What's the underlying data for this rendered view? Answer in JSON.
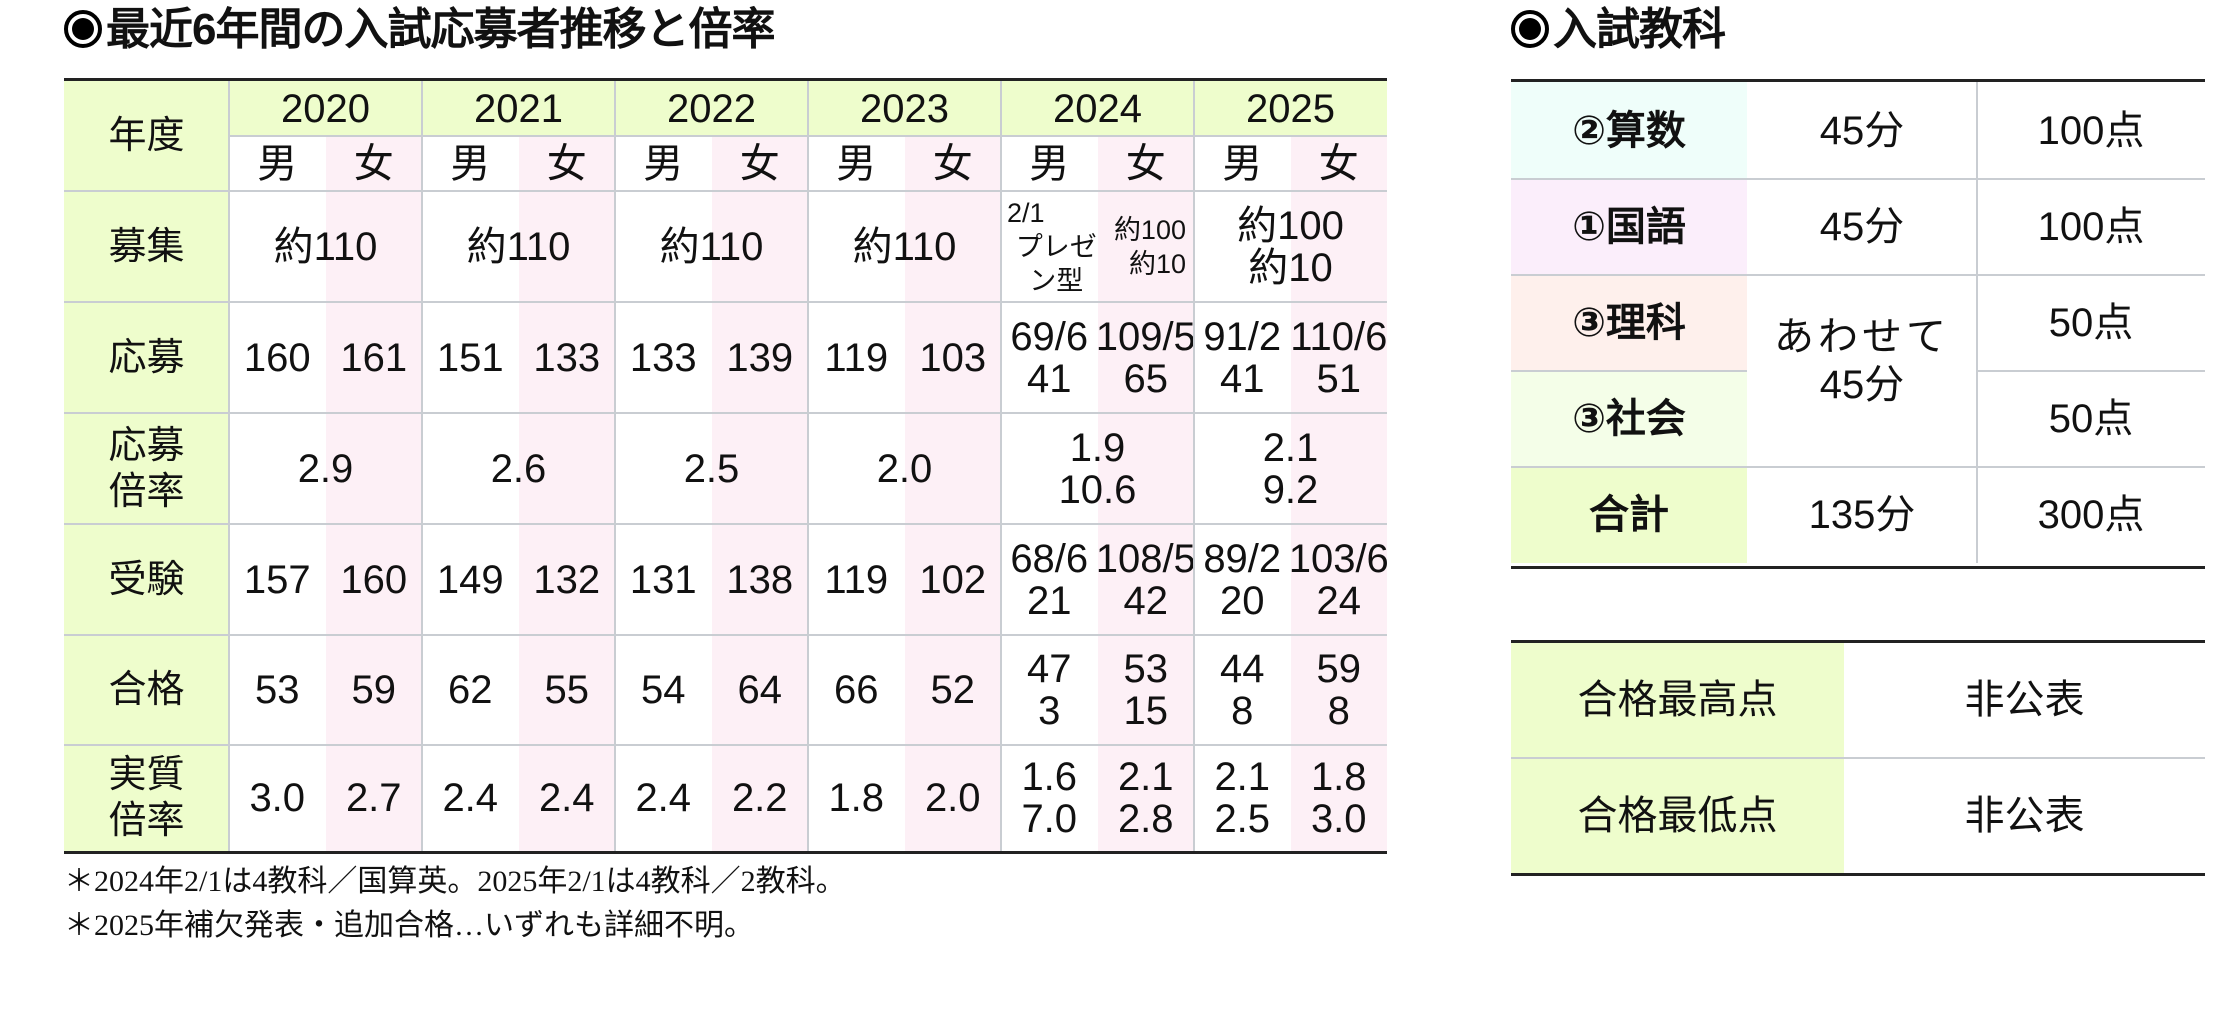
{
  "main_title": "最近6年間の入試応募者推移と倍率",
  "subject_title": "入試教科",
  "table": {
    "year_label": "年度",
    "years": [
      "2020",
      "2021",
      "2022",
      "2023",
      "2024",
      "2025"
    ],
    "male": "男",
    "female": "女",
    "row_labels": {
      "recruit": "募集",
      "applicants": "応募",
      "app_ratio_1": "応募",
      "app_ratio_2": "倍率",
      "examinees": "受験",
      "passed": "合格",
      "real_ratio_1": "実質",
      "real_ratio_2": "倍率"
    },
    "recruit": [
      "約110",
      "約110",
      "約110",
      "約110"
    ],
    "recruit_2024": {
      "m1": "2/1",
      "m2": "プレゼン型",
      "f1": "約100",
      "f2": "約10"
    },
    "recruit_2025": {
      "l1": "約100",
      "l2": "約10"
    },
    "applicants": [
      {
        "m": "160",
        "f": "161"
      },
      {
        "m": "151",
        "f": "133"
      },
      {
        "m": "133",
        "f": "139"
      },
      {
        "m": "119",
        "f": "103"
      },
      {
        "m1": "69/6",
        "m2": "41",
        "f1": "109/5",
        "f2": "65"
      },
      {
        "m1": "91/2",
        "m2": "41",
        "f1": "110/6",
        "f2": "51"
      }
    ],
    "app_ratio": [
      {
        "l1": "2.9"
      },
      {
        "l1": "2.6"
      },
      {
        "l1": "2.5"
      },
      {
        "l1": "2.0"
      },
      {
        "l1": "1.9",
        "l2": "10.6"
      },
      {
        "l1": "2.1",
        "l2": "9.2"
      }
    ],
    "examinees": [
      {
        "m": "157",
        "f": "160"
      },
      {
        "m": "149",
        "f": "132"
      },
      {
        "m": "131",
        "f": "138"
      },
      {
        "m": "119",
        "f": "102"
      },
      {
        "m1": "68/6",
        "m2": "21",
        "f1": "108/5",
        "f2": "42"
      },
      {
        "m1": "89/2",
        "m2": "20",
        "f1": "103/6",
        "f2": "24"
      }
    ],
    "passed": [
      {
        "m": "53",
        "f": "59"
      },
      {
        "m": "62",
        "f": "55"
      },
      {
        "m": "54",
        "f": "64"
      },
      {
        "m": "66",
        "f": "52"
      },
      {
        "m1": "47",
        "m2": "3",
        "f1": "53",
        "f2": "15"
      },
      {
        "m1": "44",
        "m2": "8",
        "f1": "59",
        "f2": "8"
      }
    ],
    "real_ratio": [
      {
        "m": "3.0",
        "f": "2.7"
      },
      {
        "m": "2.4",
        "f": "2.4"
      },
      {
        "m": "2.4",
        "f": "2.2"
      },
      {
        "m": "1.8",
        "f": "2.0"
      },
      {
        "m1": "1.6",
        "m2": "7.0",
        "f1": "2.1",
        "f2": "2.8"
      },
      {
        "m1": "2.1",
        "m2": "2.5",
        "f1": "1.8",
        "f2": "3.0"
      }
    ]
  },
  "notes": [
    "＊2024年2/1は4教科／国算英。2025年2/1は4教科／2教科。",
    "＊2025年補欠発表・追加合格…いずれも詳細不明。"
  ],
  "subjects": {
    "rows": [
      {
        "name": "②算数",
        "time": "45分",
        "points": "100点",
        "color": "#effefa"
      },
      {
        "name": "①国語",
        "time": "45分",
        "points": "100点",
        "color": "#fbeefb"
      },
      {
        "name": "③理科",
        "points": "50点",
        "color": "#fef0ec"
      },
      {
        "name": "③社会",
        "points": "50点",
        "color": "#f4fee8"
      }
    ],
    "combined_time_1": "あわせて",
    "combined_time_2": "45分",
    "total": {
      "name": "合計",
      "time": "135分",
      "points": "300点",
      "color": "#eefdcc"
    }
  },
  "scores": {
    "rows": [
      {
        "label": "合格最高点",
        "value": "非公表"
      },
      {
        "label": "合格最低点",
        "value": "非公表"
      }
    ]
  },
  "colors": {
    "header_green": "#eefdcc",
    "female_pink": "#fdf0f6",
    "grid": "#c9cdd2",
    "border": "#222222"
  }
}
